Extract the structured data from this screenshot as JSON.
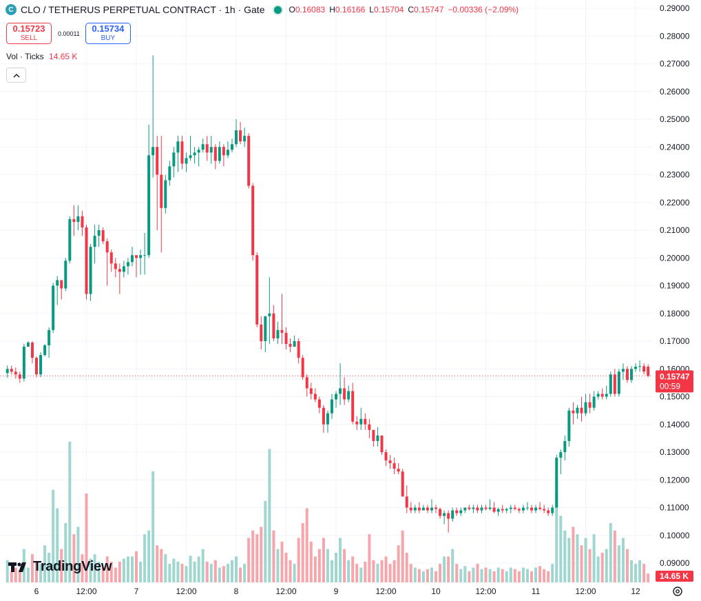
{
  "header": {
    "symbol_icon": "CLO coin icon (teal)",
    "title": "CLO / TETHERUS PERPETUAL CONTRACT · 1h · Gate",
    "status_icon": "market-open-dot",
    "ohlc": {
      "o_label": "O",
      "o_value": "0.16083",
      "h_label": "H",
      "h_value": "0.16166",
      "l_label": "L",
      "l_value": "0.15704",
      "c_label": "C",
      "c_value": "0.15747",
      "change": "−0.00336 (−2.09%)"
    }
  },
  "trade": {
    "sell_price": "0.15723",
    "sell_label": "SELL",
    "spread": "0.00011",
    "buy_price": "0.15734",
    "buy_label": "BUY"
  },
  "volume_legend": {
    "label": "Vol · Ticks",
    "value": "14.65 K"
  },
  "branding": {
    "logo_text": "TradingView",
    "logo_icon": "tradingview-logo-icon"
  },
  "price_badge": {
    "value": "0.15747",
    "countdown": "00:59"
  },
  "volume_badge": {
    "value": "14.65 K"
  },
  "colors": {
    "up": "#089981",
    "down": "#f23645",
    "vol_up": "#9fd6cf",
    "vol_down": "#f5a6ab",
    "grid": "#f0f3fa"
  },
  "chart_data": {
    "type": "candlestick",
    "interval": "1h",
    "ylim": [
      0.09,
      0.29
    ],
    "y_ticks": [
      "0.29000",
      "0.28000",
      "0.27000",
      "0.26000",
      "0.25000",
      "0.24000",
      "0.23000",
      "0.22000",
      "0.21000",
      "0.20000",
      "0.19000",
      "0.18000",
      "0.17000",
      "0.16000",
      "0.15000",
      "0.14000",
      "0.13000",
      "0.12000",
      "0.11000",
      "0.10000",
      "0.09000"
    ],
    "x_ticks": [
      {
        "label": "6",
        "hours": 0
      },
      {
        "label": "12:00",
        "hours": 12
      },
      {
        "label": "7",
        "hours": 24
      },
      {
        "label": "12:00",
        "hours": 36
      },
      {
        "label": "8",
        "hours": 48
      },
      {
        "label": "12:00",
        "hours": 60
      },
      {
        "label": "9",
        "hours": 72
      },
      {
        "label": "12:00",
        "hours": 84
      },
      {
        "label": "10",
        "hours": 96
      },
      {
        "label": "12:00",
        "hours": 108
      },
      {
        "label": "11",
        "hours": 120
      },
      {
        "label": "12:00",
        "hours": 132
      },
      {
        "label": "12",
        "hours": 144
      }
    ],
    "x_range_hours": [
      -8,
      148
    ],
    "last_price": 0.15747,
    "volume_scale_max": 20000,
    "ohlcv": [
      [
        0.1585,
        0.1612,
        0.1568,
        0.16,
        3000
      ],
      [
        0.16,
        0.1612,
        0.158,
        0.159,
        1500
      ],
      [
        0.159,
        0.1605,
        0.1565,
        0.158,
        2000
      ],
      [
        0.158,
        0.159,
        0.155,
        0.1565,
        1700
      ],
      [
        0.1565,
        0.169,
        0.1555,
        0.168,
        4500
      ],
      [
        0.168,
        0.17,
        0.168,
        0.1695,
        2000
      ],
      [
        0.1695,
        0.17,
        0.162,
        0.164,
        3800
      ],
      [
        0.164,
        0.1645,
        0.157,
        0.158,
        2800
      ],
      [
        0.158,
        0.166,
        0.157,
        0.165,
        2500
      ],
      [
        0.165,
        0.169,
        0.1645,
        0.1685,
        5000
      ],
      [
        0.1685,
        0.175,
        0.164,
        0.174,
        4000
      ],
      [
        0.174,
        0.191,
        0.173,
        0.19,
        12500
      ],
      [
        0.19,
        0.1935,
        0.183,
        0.192,
        10000
      ],
      [
        0.192,
        0.192,
        0.185,
        0.189,
        4500
      ],
      [
        0.189,
        0.2,
        0.188,
        0.199,
        8000
      ],
      [
        0.199,
        0.215,
        0.198,
        0.214,
        19000
      ],
      [
        0.214,
        0.219,
        0.208,
        0.213,
        6500
      ],
      [
        0.213,
        0.219,
        0.21,
        0.215,
        7500
      ],
      [
        0.215,
        0.217,
        0.208,
        0.211,
        3800
      ],
      [
        0.211,
        0.212,
        0.185,
        0.187,
        12000
      ],
      [
        0.187,
        0.205,
        0.1845,
        0.204,
        3200
      ],
      [
        0.204,
        0.212,
        0.198,
        0.208,
        3800
      ],
      [
        0.208,
        0.212,
        0.204,
        0.21,
        2800
      ],
      [
        0.21,
        0.211,
        0.205,
        0.206,
        2000
      ],
      [
        0.206,
        0.207,
        0.19,
        0.202,
        3500
      ],
      [
        0.202,
        0.203,
        0.195,
        0.198,
        2800
      ],
      [
        0.198,
        0.2,
        0.193,
        0.196,
        2000
      ],
      [
        0.196,
        0.198,
        0.187,
        0.195,
        2800
      ],
      [
        0.195,
        0.199,
        0.193,
        0.197,
        3200
      ],
      [
        0.197,
        0.2,
        0.194,
        0.1985,
        3500
      ],
      [
        0.1985,
        0.204,
        0.197,
        0.201,
        3500
      ],
      [
        0.201,
        0.201,
        0.193,
        0.2,
        4200
      ],
      [
        0.2,
        0.203,
        0.194,
        0.201,
        2800
      ],
      [
        0.201,
        0.209,
        0.194,
        0.201,
        6500
      ],
      [
        0.201,
        0.248,
        0.2,
        0.237,
        7000
      ],
      [
        0.237,
        0.273,
        0.229,
        0.24,
        15000
      ],
      [
        0.24,
        0.244,
        0.21,
        0.23,
        5000
      ],
      [
        0.23,
        0.244,
        0.202,
        0.218,
        4500
      ],
      [
        0.218,
        0.23,
        0.216,
        0.228,
        3800
      ],
      [
        0.228,
        0.235,
        0.226,
        0.233,
        2500
      ],
      [
        0.233,
        0.24,
        0.229,
        0.238,
        3200
      ],
      [
        0.238,
        0.244,
        0.231,
        0.242,
        2800
      ],
      [
        0.242,
        0.244,
        0.232,
        0.234,
        2500
      ],
      [
        0.234,
        0.238,
        0.231,
        0.236,
        2200
      ],
      [
        0.236,
        0.244,
        0.235,
        0.237,
        3600
      ],
      [
        0.237,
        0.24,
        0.234,
        0.238,
        2800
      ],
      [
        0.238,
        0.24,
        0.233,
        0.239,
        3500
      ],
      [
        0.239,
        0.243,
        0.238,
        0.241,
        4500
      ],
      [
        0.241,
        0.244,
        0.235,
        0.238,
        2800
      ],
      [
        0.238,
        0.244,
        0.234,
        0.24,
        2500
      ],
      [
        0.24,
        0.241,
        0.232,
        0.235,
        3000
      ],
      [
        0.235,
        0.242,
        0.234,
        0.24,
        2000
      ],
      [
        0.24,
        0.241,
        0.233,
        0.237,
        2200
      ],
      [
        0.237,
        0.242,
        0.236,
        0.239,
        2500
      ],
      [
        0.239,
        0.243,
        0.238,
        0.241,
        3000
      ],
      [
        0.241,
        0.25,
        0.24,
        0.246,
        3500
      ],
      [
        0.246,
        0.249,
        0.241,
        0.242,
        2000
      ],
      [
        0.242,
        0.247,
        0.24,
        0.244,
        2500
      ],
      [
        0.244,
        0.245,
        0.225,
        0.226,
        6000
      ],
      [
        0.226,
        0.227,
        0.199,
        0.201,
        7000
      ],
      [
        0.201,
        0.202,
        0.175,
        0.176,
        6500
      ],
      [
        0.176,
        0.179,
        0.167,
        0.17,
        7500
      ],
      [
        0.17,
        0.179,
        0.166,
        0.179,
        11000
      ],
      [
        0.179,
        0.193,
        0.169,
        0.18,
        18000
      ],
      [
        0.18,
        0.183,
        0.17,
        0.171,
        7000
      ],
      [
        0.171,
        0.177,
        0.169,
        0.174,
        4500
      ],
      [
        0.174,
        0.187,
        0.169,
        0.173,
        5500
      ],
      [
        0.173,
        0.175,
        0.167,
        0.169,
        4000
      ],
      [
        0.169,
        0.171,
        0.166,
        0.168,
        3000
      ],
      [
        0.168,
        0.172,
        0.168,
        0.17,
        2500
      ],
      [
        0.17,
        0.171,
        0.162,
        0.164,
        6000
      ],
      [
        0.164,
        0.165,
        0.156,
        0.157,
        8000
      ],
      [
        0.157,
        0.158,
        0.15,
        0.153,
        10000
      ],
      [
        0.153,
        0.155,
        0.149,
        0.151,
        5500
      ],
      [
        0.151,
        0.153,
        0.148,
        0.149,
        3500
      ],
      [
        0.149,
        0.15,
        0.144,
        0.146,
        4500
      ],
      [
        0.146,
        0.147,
        0.137,
        0.14,
        6000
      ],
      [
        0.14,
        0.145,
        0.137,
        0.144,
        4500
      ],
      [
        0.144,
        0.151,
        0.142,
        0.149,
        3000
      ],
      [
        0.149,
        0.152,
        0.146,
        0.151,
        4000
      ],
      [
        0.151,
        0.162,
        0.147,
        0.153,
        6000
      ],
      [
        0.153,
        0.157,
        0.147,
        0.149,
        4500
      ],
      [
        0.149,
        0.154,
        0.148,
        0.152,
        3000
      ],
      [
        0.152,
        0.155,
        0.14,
        0.141,
        3500
      ],
      [
        0.141,
        0.143,
        0.138,
        0.14,
        2500
      ],
      [
        0.14,
        0.146,
        0.138,
        0.142,
        2000
      ],
      [
        0.142,
        0.144,
        0.138,
        0.14,
        2800
      ],
      [
        0.14,
        0.142,
        0.135,
        0.138,
        6500
      ],
      [
        0.138,
        0.138,
        0.132,
        0.134,
        3000
      ],
      [
        0.134,
        0.139,
        0.132,
        0.136,
        2500
      ],
      [
        0.136,
        0.136,
        0.129,
        0.13,
        3000
      ],
      [
        0.13,
        0.131,
        0.125,
        0.127,
        3500
      ],
      [
        0.127,
        0.129,
        0.124,
        0.126,
        2500
      ],
      [
        0.126,
        0.128,
        0.122,
        0.124,
        3000
      ],
      [
        0.124,
        0.126,
        0.122,
        0.123,
        5000
      ],
      [
        0.123,
        0.124,
        0.114,
        0.114,
        7000
      ],
      [
        0.114,
        0.118,
        0.108,
        0.11,
        4000
      ],
      [
        0.11,
        0.112,
        0.108,
        0.109,
        2500
      ],
      [
        0.109,
        0.111,
        0.108,
        0.11,
        2000
      ],
      [
        0.11,
        0.112,
        0.108,
        0.109,
        1800
      ],
      [
        0.109,
        0.111,
        0.109,
        0.11,
        1500
      ],
      [
        0.11,
        0.111,
        0.108,
        0.109,
        1800
      ],
      [
        0.109,
        0.113,
        0.108,
        0.11,
        2000
      ],
      [
        0.11,
        0.111,
        0.108,
        0.1095,
        1500
      ],
      [
        0.1095,
        0.11,
        0.106,
        0.107,
        2500
      ],
      [
        0.107,
        0.109,
        0.104,
        0.108,
        3500
      ],
      [
        0.108,
        0.109,
        0.101,
        0.106,
        3500
      ],
      [
        0.106,
        0.11,
        0.105,
        0.109,
        4500
      ],
      [
        0.109,
        0.11,
        0.107,
        0.108,
        2500
      ],
      [
        0.108,
        0.11,
        0.107,
        0.109,
        1800
      ],
      [
        0.109,
        0.11,
        0.108,
        0.11,
        2200
      ],
      [
        0.11,
        0.111,
        0.109,
        0.1095,
        1500
      ],
      [
        0.1095,
        0.111,
        0.108,
        0.11,
        2000
      ],
      [
        0.11,
        0.111,
        0.108,
        0.109,
        2500
      ],
      [
        0.109,
        0.111,
        0.108,
        0.11,
        1800
      ],
      [
        0.11,
        0.111,
        0.109,
        0.1095,
        2000
      ],
      [
        0.1095,
        0.113,
        0.109,
        0.11,
        1800
      ],
      [
        0.11,
        0.112,
        0.108,
        0.1085,
        1500
      ],
      [
        0.1085,
        0.11,
        0.107,
        0.1095,
        2000
      ],
      [
        0.1095,
        0.111,
        0.108,
        0.109,
        1800
      ],
      [
        0.109,
        0.11,
        0.108,
        0.1095,
        1500
      ],
      [
        0.1095,
        0.111,
        0.108,
        0.11,
        2000
      ],
      [
        0.11,
        0.111,
        0.109,
        0.1095,
        1800
      ],
      [
        0.1095,
        0.11,
        0.108,
        0.109,
        1500
      ],
      [
        0.109,
        0.111,
        0.108,
        0.11,
        2000
      ],
      [
        0.11,
        0.112,
        0.109,
        0.11,
        1800
      ],
      [
        0.11,
        0.111,
        0.108,
        0.109,
        1500
      ],
      [
        0.109,
        0.111,
        0.108,
        0.11,
        2000
      ],
      [
        0.11,
        0.112,
        0.109,
        0.1095,
        2200
      ],
      [
        0.1095,
        0.111,
        0.108,
        0.109,
        1800
      ],
      [
        0.109,
        0.11,
        0.107,
        0.108,
        1500
      ],
      [
        0.108,
        0.111,
        0.107,
        0.11,
        2500
      ],
      [
        0.11,
        0.129,
        0.11,
        0.128,
        12000
      ],
      [
        0.128,
        0.131,
        0.122,
        0.13,
        9000
      ],
      [
        0.13,
        0.136,
        0.127,
        0.134,
        7000
      ],
      [
        0.134,
        0.146,
        0.132,
        0.145,
        6000
      ],
      [
        0.145,
        0.148,
        0.14,
        0.144,
        7500
      ],
      [
        0.144,
        0.147,
        0.142,
        0.146,
        6500
      ],
      [
        0.146,
        0.15,
        0.141,
        0.144,
        5000
      ],
      [
        0.144,
        0.151,
        0.143,
        0.148,
        6000
      ],
      [
        0.148,
        0.151,
        0.144,
        0.146,
        4500
      ],
      [
        0.146,
        0.152,
        0.145,
        0.15,
        6500
      ],
      [
        0.15,
        0.152,
        0.149,
        0.151,
        3500
      ],
      [
        0.151,
        0.153,
        0.149,
        0.15,
        4000
      ],
      [
        0.15,
        0.154,
        0.149,
        0.151,
        4500
      ],
      [
        0.151,
        0.159,
        0.15,
        0.158,
        8000
      ],
      [
        0.158,
        0.16,
        0.15,
        0.151,
        7000
      ],
      [
        0.151,
        0.16,
        0.15,
        0.159,
        5000
      ],
      [
        0.159,
        0.162,
        0.156,
        0.16,
        6000
      ],
      [
        0.16,
        0.161,
        0.155,
        0.156,
        4500
      ],
      [
        0.156,
        0.161,
        0.155,
        0.16,
        3000
      ],
      [
        0.16,
        0.162,
        0.159,
        0.1608,
        2500
      ],
      [
        0.1608,
        0.163,
        0.159,
        0.161,
        3000
      ],
      [
        0.161,
        0.162,
        0.158,
        0.159,
        2500
      ],
      [
        0.1608,
        0.1617,
        0.157,
        0.1575,
        1200
      ]
    ]
  }
}
